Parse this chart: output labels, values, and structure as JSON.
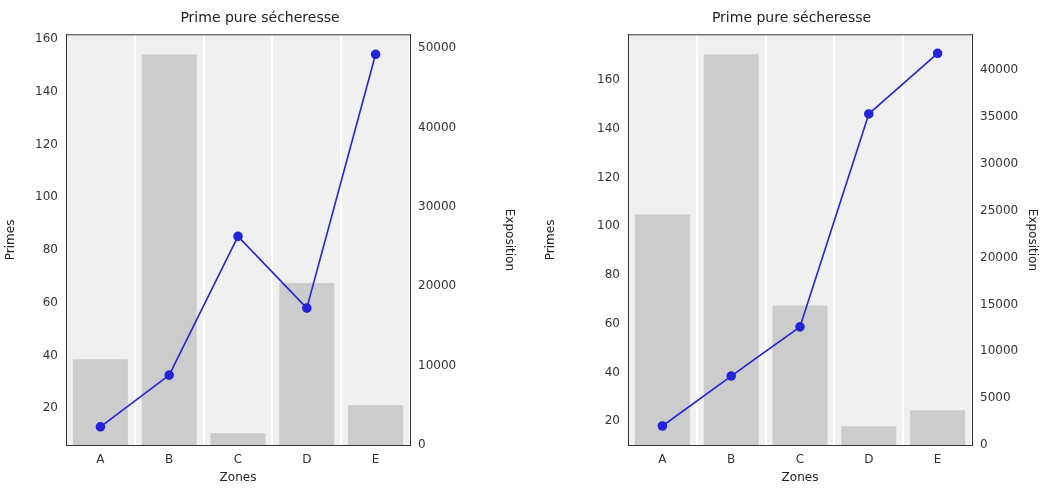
{
  "chart_data": [
    {
      "type": "bar",
      "title": "Prime pure sécheresse",
      "xlabel": "Zones",
      "ylabel": "Primes",
      "y2label": "Exposition",
      "categories": [
        "A",
        "B",
        "C",
        "D",
        "E"
      ],
      "marker": "circle",
      "series": [
        {
          "type": "bar",
          "axis": "y2",
          "color": "#cccccc",
          "values": [
            10800,
            49200,
            1500,
            20400,
            5000
          ]
        },
        {
          "type": "line",
          "color": "#2323d8",
          "values": [
            13.0,
            32.6,
            85.2,
            58.0,
            154.2
          ]
        }
      ],
      "ylim": [
        6.1,
        161.6
      ],
      "yticks": [
        20,
        40,
        60,
        80,
        100,
        120,
        140,
        160
      ],
      "y2lim": [
        0,
        51670
      ],
      "y2ticks": [
        0,
        10000,
        20000,
        30000,
        40000,
        50000
      ]
    },
    {
      "type": "bar",
      "title": "Prime pure sécheresse",
      "xlabel": "Zones",
      "ylabel": "Primes",
      "y2label": "Exposition",
      "categories": [
        "A",
        "B",
        "C",
        "D",
        "E"
      ],
      "marker": "circle",
      "series": [
        {
          "type": "bar",
          "axis": "y2",
          "color": "#cccccc",
          "values": [
            24600,
            41700,
            14900,
            2000,
            3700
          ]
        },
        {
          "type": "line",
          "color": "#2323d8",
          "values": [
            18.0,
            38.5,
            58.7,
            146.1,
            171.0
          ]
        }
      ],
      "ylim": [
        10.2,
        178.6
      ],
      "yticks": [
        20,
        40,
        60,
        80,
        100,
        120,
        140,
        160
      ],
      "y2lim": [
        0,
        43780
      ],
      "y2ticks": [
        0,
        5000,
        10000,
        15000,
        20000,
        25000,
        30000,
        35000,
        40000
      ]
    }
  ]
}
